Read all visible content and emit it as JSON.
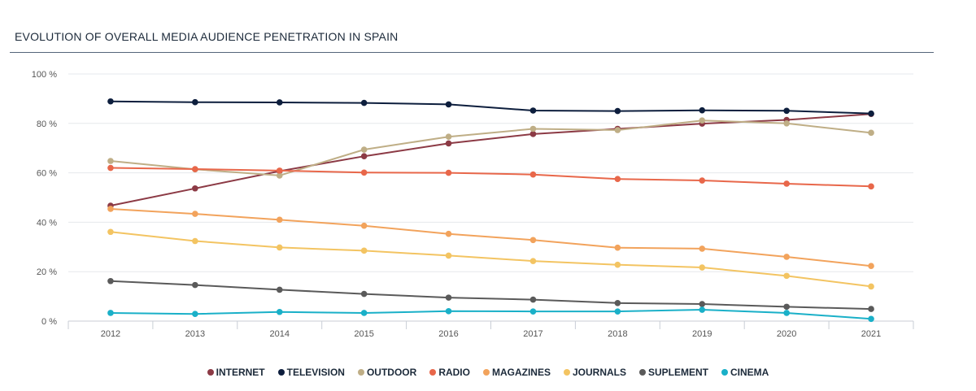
{
  "title": "EVOLUTION OF OVERALL MEDIA AUDIENCE PENETRATION IN SPAIN",
  "chart_data": {
    "type": "line",
    "x": [
      "2012",
      "2013",
      "2014",
      "2015",
      "2016",
      "2017",
      "2018",
      "2019",
      "2020",
      "2021"
    ],
    "ylim": [
      0,
      100
    ],
    "yticks": [
      0,
      20,
      40,
      60,
      80,
      100
    ],
    "ytick_labels": [
      "0 %",
      "20 %",
      "40 %",
      "60 %",
      "80 %",
      "100 %"
    ],
    "grid": true,
    "legend_position": "bottom",
    "series": [
      {
        "name": "INTERNET",
        "color": "#8c3a45",
        "values": [
          46.7,
          53.7,
          60.7,
          66.7,
          71.9,
          75.7,
          77.8,
          79.9,
          81.4,
          83.8
        ]
      },
      {
        "name": "TELEVISION",
        "color": "#0d1e3d",
        "values": [
          88.9,
          88.6,
          88.5,
          88.3,
          87.7,
          85.2,
          85.0,
          85.3,
          85.1,
          84.0
        ]
      },
      {
        "name": "OUTDOOR",
        "color": "#bfae86",
        "values": [
          64.8,
          61.4,
          58.9,
          69.4,
          74.6,
          77.8,
          77.3,
          81.2,
          80.0,
          76.2
        ]
      },
      {
        "name": "RADIO",
        "color": "#e8674a",
        "values": [
          62.0,
          61.5,
          60.9,
          60.1,
          60.0,
          59.3,
          57.5,
          56.9,
          55.6,
          54.5
        ]
      },
      {
        "name": "MAGAZINES",
        "color": "#f2a35c",
        "values": [
          45.4,
          43.4,
          41.0,
          38.6,
          35.3,
          32.8,
          29.7,
          29.3,
          26.0,
          22.3
        ]
      },
      {
        "name": "JOURNALS",
        "color": "#f3c462",
        "values": [
          36.1,
          32.4,
          29.8,
          28.5,
          26.5,
          24.3,
          22.8,
          21.7,
          18.3,
          14.0
        ]
      },
      {
        "name": "SUPLEMENT",
        "color": "#5a5a5a",
        "values": [
          16.2,
          14.6,
          12.7,
          11.0,
          9.5,
          8.7,
          7.3,
          6.9,
          5.8,
          4.9
        ]
      },
      {
        "name": "CINEMA",
        "color": "#1ab0c8",
        "values": [
          3.3,
          2.9,
          3.7,
          3.3,
          4.0,
          3.9,
          3.9,
          4.6,
          3.3,
          0.9
        ]
      }
    ]
  }
}
